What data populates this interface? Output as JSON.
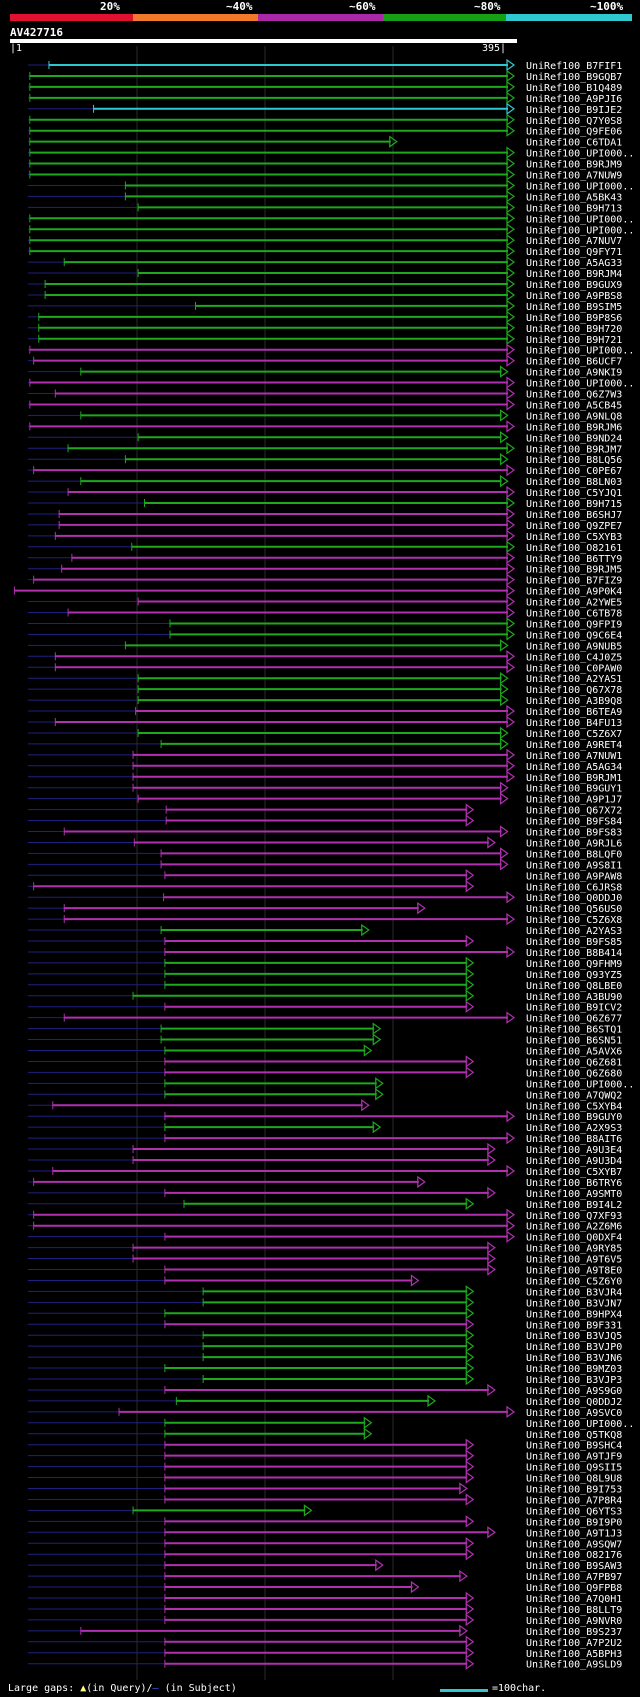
{
  "colors": {
    "background": "#000000",
    "identity_scale": [
      "#e0102f",
      "#f07a2a",
      "#a828a8",
      "#16a016",
      "#30c8d0"
    ],
    "hit_high": "#30c8d0",
    "hit_mid": "#1ea81e",
    "hit_low": "#b030b0",
    "gap_marker": "#ffff88",
    "subject_gap": "#202080"
  },
  "identity_legend": {
    "labels": [
      "20%",
      "~40%",
      "~60%",
      "~80%",
      "~100%"
    ]
  },
  "query": {
    "id": "AV427716",
    "start_label": "|1",
    "end_label": "395|",
    "length": 395
  },
  "footer": {
    "large_gaps_label": "Large gaps: ",
    "query_gap_label": "(in Query)/",
    "subject_gap_symbol": "—",
    "subject_gap_label": " (in Subject)",
    "scale_label": "=100char."
  },
  "chart_data": {
    "type": "alignment-overview",
    "title": "AV427716",
    "x_range": [
      1,
      395
    ],
    "hits": [
      {
        "label": "UniRef100_B7FIF1",
        "start": 30,
        "end": 395,
        "color": "cyan"
      },
      {
        "label": "UniRef100_B9GQB7",
        "start": 15,
        "end": 395,
        "color": "green"
      },
      {
        "label": "UniRef100_B1Q489",
        "start": 15,
        "end": 395,
        "color": "green"
      },
      {
        "label": "UniRef100_A9PJI6",
        "start": 15,
        "end": 395,
        "color": "green"
      },
      {
        "label": "UniRef100_B9IJE2",
        "start": 65,
        "end": 395,
        "color": "cyan"
      },
      {
        "label": "UniRef100_Q7Y0S8",
        "start": 15,
        "end": 395,
        "color": "green"
      },
      {
        "label": "UniRef100_Q9FE06",
        "start": 15,
        "end": 395,
        "color": "green"
      },
      {
        "label": "UniRef100_C6TDA1",
        "start": 15,
        "end": 303,
        "color": "green"
      },
      {
        "label": "UniRef100_UPI000..",
        "start": 15,
        "end": 395,
        "color": "green"
      },
      {
        "label": "UniRef100_B9RJM9",
        "start": 15,
        "end": 395,
        "color": "green"
      },
      {
        "label": "UniRef100_A7NUW9",
        "start": 15,
        "end": 395,
        "color": "green"
      },
      {
        "label": "UniRef100_UPI000..",
        "start": 90,
        "end": 395,
        "color": "green"
      },
      {
        "label": "UniRef100_A5BK43",
        "start": 90,
        "end": 395,
        "color": "green"
      },
      {
        "label": "UniRef100_B9H713",
        "start": 100,
        "end": 395,
        "color": "green"
      },
      {
        "label": "UniRef100_UPI000..",
        "start": 15,
        "end": 395,
        "color": "green"
      },
      {
        "label": "UniRef100_UPI000..",
        "start": 15,
        "end": 395,
        "color": "green"
      },
      {
        "label": "UniRef100_A7NUV7",
        "start": 15,
        "end": 395,
        "color": "green"
      },
      {
        "label": "UniRef100_Q9FY71",
        "start": 15,
        "end": 395,
        "color": "green"
      },
      {
        "label": "UniRef100_A5AG33",
        "start": 42,
        "end": 395,
        "color": "green"
      },
      {
        "label": "UniRef100_B9RJM4",
        "start": 100,
        "end": 395,
        "color": "green"
      },
      {
        "label": "UniRef100_B9GUX9",
        "start": 27,
        "end": 395,
        "color": "green"
      },
      {
        "label": "UniRef100_A9PBS8",
        "start": 27,
        "end": 395,
        "color": "green"
      },
      {
        "label": "UniRef100_B9SIM5",
        "start": 145,
        "end": 395,
        "color": "green"
      },
      {
        "label": "UniRef100_B9P8S6",
        "start": 22,
        "end": 395,
        "color": "green"
      },
      {
        "label": "UniRef100_B9H720",
        "start": 22,
        "end": 395,
        "color": "green"
      },
      {
        "label": "UniRef100_B9H721",
        "start": 22,
        "end": 395,
        "color": "green"
      },
      {
        "label": "UniRef100_UPI000..",
        "start": 15,
        "end": 395,
        "color": "magenta"
      },
      {
        "label": "UniRef100_B6UCF7",
        "start": 18,
        "end": 395,
        "color": "magenta"
      },
      {
        "label": "UniRef100_A9NKI9",
        "start": 55,
        "end": 390,
        "color": "green"
      },
      {
        "label": "UniRef100_UPI000..",
        "start": 15,
        "end": 395,
        "color": "magenta"
      },
      {
        "label": "UniRef100_Q6Z7W3",
        "start": 35,
        "end": 395,
        "color": "magenta"
      },
      {
        "label": "UniRef100_A5CB45",
        "start": 15,
        "end": 395,
        "color": "magenta"
      },
      {
        "label": "UniRef100_A9NLQ8",
        "start": 55,
        "end": 390,
        "color": "green"
      },
      {
        "label": "UniRef100_B9RJM6",
        "start": 15,
        "end": 395,
        "color": "magenta"
      },
      {
        "label": "UniRef100_B9ND24",
        "start": 100,
        "end": 390,
        "color": "green"
      },
      {
        "label": "UniRef100_B9RJM7",
        "start": 45,
        "end": 395,
        "color": "green"
      },
      {
        "label": "UniRef100_B8LQ56",
        "start": 90,
        "end": 390,
        "color": "green"
      },
      {
        "label": "UniRef100_C0PE67",
        "start": 18,
        "end": 395,
        "color": "magenta"
      },
      {
        "label": "UniRef100_B8LN03",
        "start": 55,
        "end": 390,
        "color": "green"
      },
      {
        "label": "UniRef100_C5YJQ1",
        "start": 45,
        "end": 395,
        "color": "magenta"
      },
      {
        "label": "UniRef100_B9H715",
        "start": 105,
        "end": 395,
        "color": "green"
      },
      {
        "label": "UniRef100_B6SHJ7",
        "start": 38,
        "end": 395,
        "color": "magenta"
      },
      {
        "label": "UniRef100_Q9ZPE7",
        "start": 38,
        "end": 395,
        "color": "magenta"
      },
      {
        "label": "UniRef100_C5XYB3",
        "start": 35,
        "end": 395,
        "color": "magenta"
      },
      {
        "label": "UniRef100_O82161",
        "start": 95,
        "end": 395,
        "color": "green"
      },
      {
        "label": "UniRef100_B6TTY9",
        "start": 48,
        "end": 395,
        "color": "magenta"
      },
      {
        "label": "UniRef100_B9RJM5",
        "start": 40,
        "end": 395,
        "color": "magenta"
      },
      {
        "label": "UniRef100_B7FIZ9",
        "start": 18,
        "end": 395,
        "color": "magenta"
      },
      {
        "label": "UniRef100_A9P0K4",
        "start": 3,
        "end": 395,
        "color": "magenta"
      },
      {
        "label": "UniRef100_A2YWE5",
        "start": 100,
        "end": 395,
        "color": "magenta"
      },
      {
        "label": "UniRef100_C6TB78",
        "start": 45,
        "end": 395,
        "color": "magenta"
      },
      {
        "label": "UniRef100_Q9FPI9",
        "start": 125,
        "end": 395,
        "color": "green"
      },
      {
        "label": "UniRef100_Q9C6E4",
        "start": 125,
        "end": 395,
        "color": "green"
      },
      {
        "label": "UniRef100_A9NUB5",
        "start": 90,
        "end": 390,
        "color": "green"
      },
      {
        "label": "UniRef100_C4J0Z5",
        "start": 35,
        "end": 395,
        "color": "magenta"
      },
      {
        "label": "UniRef100_C0PAW0",
        "start": 35,
        "end": 395,
        "color": "magenta"
      },
      {
        "label": "UniRef100_A2YAS1",
        "start": 100,
        "end": 390,
        "color": "green"
      },
      {
        "label": "UniRef100_Q67X78",
        "start": 100,
        "end": 390,
        "color": "green"
      },
      {
        "label": "UniRef100_A3B9Q8",
        "start": 100,
        "end": 390,
        "color": "green"
      },
      {
        "label": "UniRef100_B6TEA9",
        "start": 98,
        "end": 395,
        "color": "magenta"
      },
      {
        "label": "UniRef100_B4FU13",
        "start": 35,
        "end": 395,
        "color": "magenta"
      },
      {
        "label": "UniRef100_C5Z6X7",
        "start": 100,
        "end": 390,
        "color": "green"
      },
      {
        "label": "UniRef100_A9RET4",
        "start": 118,
        "end": 390,
        "color": "green"
      },
      {
        "label": "UniRef100_A7NUW1",
        "start": 96,
        "end": 395,
        "color": "magenta"
      },
      {
        "label": "UniRef100_A5AG34",
        "start": 96,
        "end": 395,
        "color": "magenta"
      },
      {
        "label": "UniRef100_B9RJM1",
        "start": 96,
        "end": 395,
        "color": "magenta"
      },
      {
        "label": "UniRef100_B9GUY1",
        "start": 96,
        "end": 390,
        "color": "magenta"
      },
      {
        "label": "UniRef100_A9P1J7",
        "start": 100,
        "end": 390,
        "color": "magenta"
      },
      {
        "label": "UniRef100_Q67X72",
        "start": 122,
        "end": 363,
        "color": "magenta"
      },
      {
        "label": "UniRef100_B9FS84",
        "start": 122,
        "end": 363,
        "color": "magenta"
      },
      {
        "label": "UniRef100_B9FS83",
        "start": 42,
        "end": 390,
        "color": "magenta"
      },
      {
        "label": "UniRef100_A9RJL6",
        "start": 97,
        "end": 380,
        "color": "magenta"
      },
      {
        "label": "UniRef100_B8LQF0",
        "start": 118,
        "end": 390,
        "color": "magenta"
      },
      {
        "label": "UniRef100_A9S8I1",
        "start": 118,
        "end": 390,
        "color": "magenta"
      },
      {
        "label": "UniRef100_A9PAW8",
        "start": 121,
        "end": 363,
        "color": "magenta"
      },
      {
        "label": "UniRef100_C6JRS8",
        "start": 18,
        "end": 363,
        "color": "magenta"
      },
      {
        "label": "UniRef100_Q0DDJ0",
        "start": 120,
        "end": 395,
        "color": "magenta"
      },
      {
        "label": "UniRef100_Q56US0",
        "start": 42,
        "end": 325,
        "color": "magenta"
      },
      {
        "label": "UniRef100_C5Z6X8",
        "start": 42,
        "end": 395,
        "color": "magenta"
      },
      {
        "label": "UniRef100_A2YAS3",
        "start": 118,
        "end": 281,
        "color": "green"
      },
      {
        "label": "UniRef100_B9FS85",
        "start": 121,
        "end": 363,
        "color": "magenta"
      },
      {
        "label": "UniRef100_B8B414",
        "start": 121,
        "end": 395,
        "color": "magenta"
      },
      {
        "label": "UniRef100_Q9FHM9",
        "start": 121,
        "end": 363,
        "color": "green"
      },
      {
        "label": "UniRef100_Q93YZ5",
        "start": 121,
        "end": 363,
        "color": "green"
      },
      {
        "label": "UniRef100_Q8LBE0",
        "start": 121,
        "end": 363,
        "color": "green"
      },
      {
        "label": "UniRef100_A3BU90",
        "start": 96,
        "end": 363,
        "color": "green"
      },
      {
        "label": "UniRef100_B9ICV2",
        "start": 121,
        "end": 363,
        "color": "magenta"
      },
      {
        "label": "UniRef100_Q6Z677",
        "start": 42,
        "end": 395,
        "color": "magenta"
      },
      {
        "label": "UniRef100_B6STQ1",
        "start": 118,
        "end": 290,
        "color": "green"
      },
      {
        "label": "UniRef100_B6SN51",
        "start": 118,
        "end": 290,
        "color": "green"
      },
      {
        "label": "UniRef100_A5AVX6",
        "start": 121,
        "end": 283,
        "color": "green"
      },
      {
        "label": "UniRef100_Q6Z681",
        "start": 121,
        "end": 363,
        "color": "magenta"
      },
      {
        "label": "UniRef100_Q6Z680",
        "start": 121,
        "end": 363,
        "color": "magenta"
      },
      {
        "label": "UniRef100_UPI000..",
        "start": 121,
        "end": 292,
        "color": "green"
      },
      {
        "label": "UniRef100_A7QWQ2",
        "start": 121,
        "end": 292,
        "color": "green"
      },
      {
        "label": "UniRef100_C5XYB4",
        "start": 33,
        "end": 281,
        "color": "magenta"
      },
      {
        "label": "UniRef100_B9GUY0",
        "start": 121,
        "end": 395,
        "color": "magenta"
      },
      {
        "label": "UniRef100_A2X9S3",
        "start": 121,
        "end": 290,
        "color": "green"
      },
      {
        "label": "UniRef100_B8AIT6",
        "start": 121,
        "end": 395,
        "color": "magenta"
      },
      {
        "label": "UniRef100_A9U3E4",
        "start": 96,
        "end": 380,
        "color": "magenta"
      },
      {
        "label": "UniRef100_A9U3D4",
        "start": 96,
        "end": 380,
        "color": "magenta"
      },
      {
        "label": "UniRef100_C5XYB7",
        "start": 33,
        "end": 395,
        "color": "magenta"
      },
      {
        "label": "UniRef100_B6TRY6",
        "start": 18,
        "end": 325,
        "color": "magenta"
      },
      {
        "label": "UniRef100_A9SMT0",
        "start": 121,
        "end": 380,
        "color": "magenta"
      },
      {
        "label": "UniRef100_B9I4L2",
        "start": 136,
        "end": 363,
        "color": "green"
      },
      {
        "label": "UniRef100_Q7XF93",
        "start": 18,
        "end": 395,
        "color": "magenta"
      },
      {
        "label": "UniRef100_A2Z6M6",
        "start": 18,
        "end": 395,
        "color": "magenta"
      },
      {
        "label": "UniRef100_Q0DXF4",
        "start": 121,
        "end": 395,
        "color": "magenta"
      },
      {
        "label": "UniRef100_A9RY85",
        "start": 96,
        "end": 380,
        "color": "magenta"
      },
      {
        "label": "UniRef100_A9T6V5",
        "start": 96,
        "end": 380,
        "color": "magenta"
      },
      {
        "label": "UniRef100_A9T8E0",
        "start": 121,
        "end": 380,
        "color": "magenta"
      },
      {
        "label": "UniRef100_C5Z6Y0",
        "start": 121,
        "end": 320,
        "color": "magenta"
      },
      {
        "label": "UniRef100_B3VJR4",
        "start": 151,
        "end": 363,
        "color": "green"
      },
      {
        "label": "UniRef100_B3VJN7",
        "start": 151,
        "end": 363,
        "color": "green"
      },
      {
        "label": "UniRef100_B9HPX4",
        "start": 121,
        "end": 363,
        "color": "green"
      },
      {
        "label": "UniRef100_B9F331",
        "start": 121,
        "end": 363,
        "color": "magenta"
      },
      {
        "label": "UniRef100_B3VJQ5",
        "start": 151,
        "end": 363,
        "color": "green"
      },
      {
        "label": "UniRef100_B3VJP0",
        "start": 151,
        "end": 363,
        "color": "green"
      },
      {
        "label": "UniRef100_B3VJN6",
        "start": 151,
        "end": 363,
        "color": "green"
      },
      {
        "label": "UniRef100_B9MZ03",
        "start": 121,
        "end": 363,
        "color": "green"
      },
      {
        "label": "UniRef100_B3VJP3",
        "start": 151,
        "end": 363,
        "color": "green"
      },
      {
        "label": "UniRef100_A9S9G0",
        "start": 121,
        "end": 380,
        "color": "magenta"
      },
      {
        "label": "UniRef100_Q0DDJ2",
        "start": 130,
        "end": 333,
        "color": "green"
      },
      {
        "label": "UniRef100_A9SVC0",
        "start": 85,
        "end": 395,
        "color": "magenta"
      },
      {
        "label": "UniRef100_UPI000..",
        "start": 121,
        "end": 283,
        "color": "green"
      },
      {
        "label": "UniRef100_Q5TKQ8",
        "start": 121,
        "end": 283,
        "color": "green"
      },
      {
        "label": "UniRef100_B9SHC4",
        "start": 121,
        "end": 363,
        "color": "magenta"
      },
      {
        "label": "UniRef100_A9TJF9",
        "start": 121,
        "end": 363,
        "color": "magenta"
      },
      {
        "label": "UniRef100_Q9SII5",
        "start": 121,
        "end": 363,
        "color": "magenta"
      },
      {
        "label": "UniRef100_Q8L9U8",
        "start": 121,
        "end": 363,
        "color": "magenta"
      },
      {
        "label": "UniRef100_B9I753",
        "start": 121,
        "end": 358,
        "color": "magenta"
      },
      {
        "label": "UniRef100_A7P8R4",
        "start": 121,
        "end": 363,
        "color": "magenta"
      },
      {
        "label": "UniRef100_Q6YTS3",
        "start": 96,
        "end": 236,
        "color": "green"
      },
      {
        "label": "UniRef100_B9I9P0",
        "start": 121,
        "end": 363,
        "color": "magenta"
      },
      {
        "label": "UniRef100_A9T1J3",
        "start": 121,
        "end": 380,
        "color": "magenta"
      },
      {
        "label": "UniRef100_A9SQW7",
        "start": 121,
        "end": 363,
        "color": "magenta"
      },
      {
        "label": "UniRef100_O82176",
        "start": 121,
        "end": 363,
        "color": "magenta"
      },
      {
        "label": "UniRef100_B9SAW3",
        "start": 121,
        "end": 292,
        "color": "magenta"
      },
      {
        "label": "UniRef100_A7PB97",
        "start": 121,
        "end": 358,
        "color": "magenta"
      },
      {
        "label": "UniRef100_Q9FPB8",
        "start": 121,
        "end": 320,
        "color": "magenta"
      },
      {
        "label": "UniRef100_A7Q0H1",
        "start": 121,
        "end": 363,
        "color": "magenta"
      },
      {
        "label": "UniRef100_B8LLT9",
        "start": 121,
        "end": 363,
        "color": "magenta"
      },
      {
        "label": "UniRef100_A9NVR0",
        "start": 121,
        "end": 363,
        "color": "magenta"
      },
      {
        "label": "UniRef100_B9S237",
        "start": 55,
        "end": 358,
        "color": "magenta"
      },
      {
        "label": "UniRef100_A7P2U2",
        "start": 121,
        "end": 363,
        "color": "magenta"
      },
      {
        "label": "UniRef100_A5BPH3",
        "start": 121,
        "end": 363,
        "color": "magenta"
      },
      {
        "label": "UniRef100_A9SLD9",
        "start": 121,
        "end": 363,
        "color": "magenta"
      }
    ]
  }
}
